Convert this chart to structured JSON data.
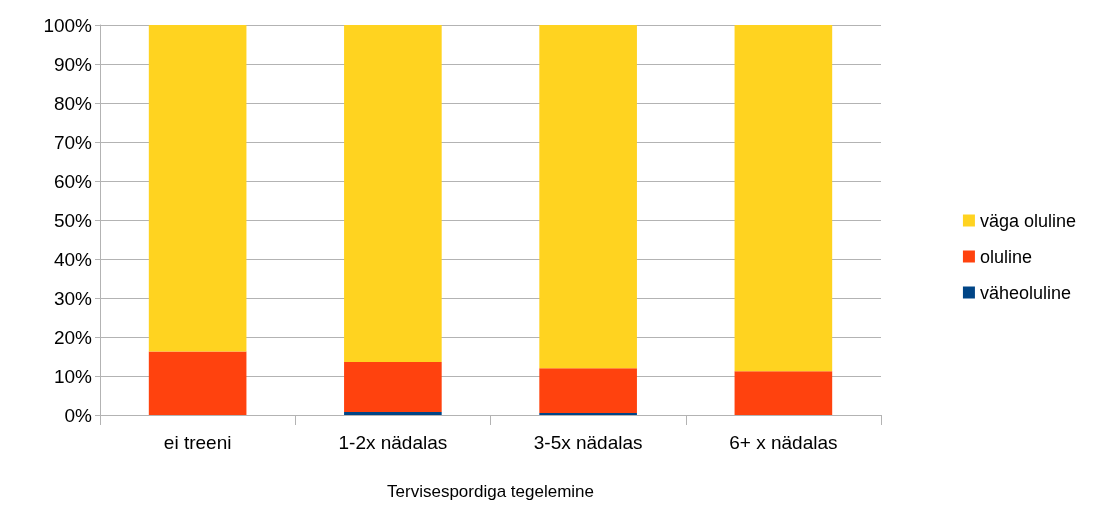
{
  "chart_data": {
    "type": "bar",
    "stacked": true,
    "xlabel": "Tervisespordiga tegelemine",
    "categories": [
      "ei treeni",
      "1-2x nädalas",
      "3-5x nädalas",
      "6+ x nädalas"
    ],
    "series": [
      {
        "name": "väheoluline",
        "color": "#004586",
        "values": [
          0,
          0.8,
          0.5,
          0
        ]
      },
      {
        "name": "oluline",
        "color": "#ff420e",
        "values": [
          16.3,
          12.8,
          11.5,
          11.2
        ]
      },
      {
        "name": "väga oluline",
        "color": "#ffd320",
        "values": [
          83.7,
          86.4,
          88,
          89.1
        ]
      }
    ],
    "ylim": [
      0,
      100
    ],
    "yticks": [
      {
        "value": 0,
        "label": "0%"
      },
      {
        "value": 10,
        "label": "10%"
      },
      {
        "value": 20,
        "label": "20%"
      },
      {
        "value": 30,
        "label": "30%"
      },
      {
        "value": 40,
        "label": "40%"
      },
      {
        "value": 50,
        "label": "50%"
      },
      {
        "value": 60,
        "label": "60%"
      },
      {
        "value": 70,
        "label": "70%"
      },
      {
        "value": 80,
        "label": "80%"
      },
      {
        "value": 90,
        "label": "90%"
      },
      {
        "value": 100,
        "label": "100%"
      }
    ],
    "grid": "y",
    "legend": "right"
  }
}
